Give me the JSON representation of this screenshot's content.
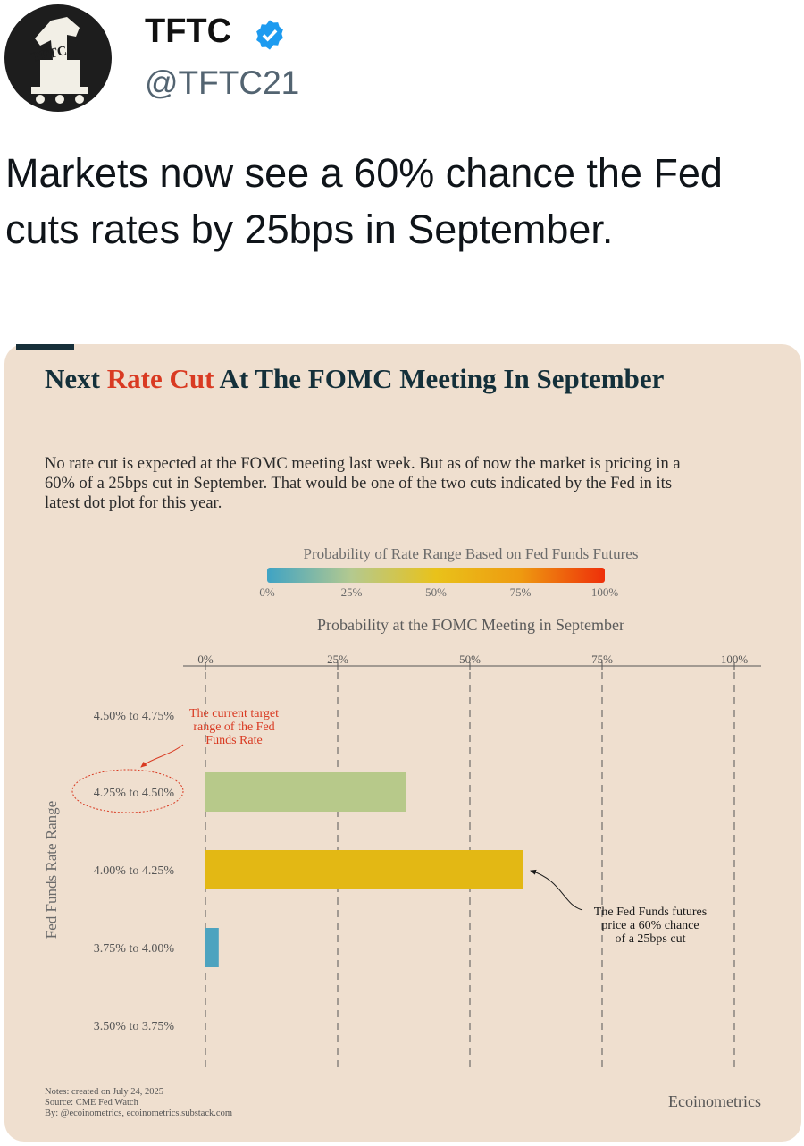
{
  "tweet": {
    "display_name": "TFTC",
    "handle": "@TFTC21",
    "verified": true,
    "avatar_text": "TFTC",
    "text": "Markets now see a 60% chance the Fed cuts rates by 25bps in September."
  },
  "chart_card": {
    "title_pre": "Next ",
    "title_highlight": "Rate Cut",
    "title_post": " At The FOMC Meeting In September",
    "subtitle": "No rate cut is expected at the FOMC meeting last week. But as of now the market is pricing in a 60% of a 25bps cut in September. That would be one of the two cuts indicated by the Fed in its latest dot plot for this year.",
    "notes": "Notes: created on July 24, 2025",
    "source": "Source: CME Fed Watch",
    "by": "By: @ecoinometrics, ecoinometrics.substack.com",
    "brand": "Ecoinometrics",
    "accent_color": "#d93a22",
    "title_color": "#14303a",
    "background_color": "#efdfcf"
  },
  "chart_data": {
    "type": "bar",
    "orientation": "horizontal",
    "xlabel": "Probability at the FOMC Meeting in September",
    "ylabel": "Fed Funds Rate Range",
    "xlim": [
      0,
      100
    ],
    "xticks": [
      "0%",
      "25%",
      "50%",
      "75%",
      "100%"
    ],
    "grid": "vertical dashed",
    "categories": [
      "4.50% to 4.75%",
      "4.25% to 4.50%",
      "4.00% to 4.25%",
      "3.75% to 4.00%",
      "3.50% to 3.75%"
    ],
    "values": [
      0,
      38,
      60,
      2.5,
      0
    ],
    "bar_colors": [
      "#b7c98a",
      "#b7c98a",
      "#e3b814",
      "#4da3bf",
      "#4da3bf"
    ],
    "color_legend": {
      "title": "Probability of Rate Range Based on Fed Funds Futures",
      "ticks": [
        "0%",
        "25%",
        "50%",
        "75%",
        "100%"
      ],
      "colors": [
        "#3fa3c4",
        "#b4c98f",
        "#e9c21a",
        "#ee9a10",
        "#ee2f0a"
      ]
    },
    "annotations": [
      {
        "target": "4.25% to 4.50%",
        "text": [
          "The current target",
          "range of the Fed",
          "Funds Rate"
        ],
        "color": "#d93a22"
      },
      {
        "target": "4.00% to 4.25%",
        "text": [
          "The Fed Funds futures",
          "price a 60% chance",
          "of a 25bps cut"
        ],
        "color": "#1a1a1a"
      }
    ]
  }
}
